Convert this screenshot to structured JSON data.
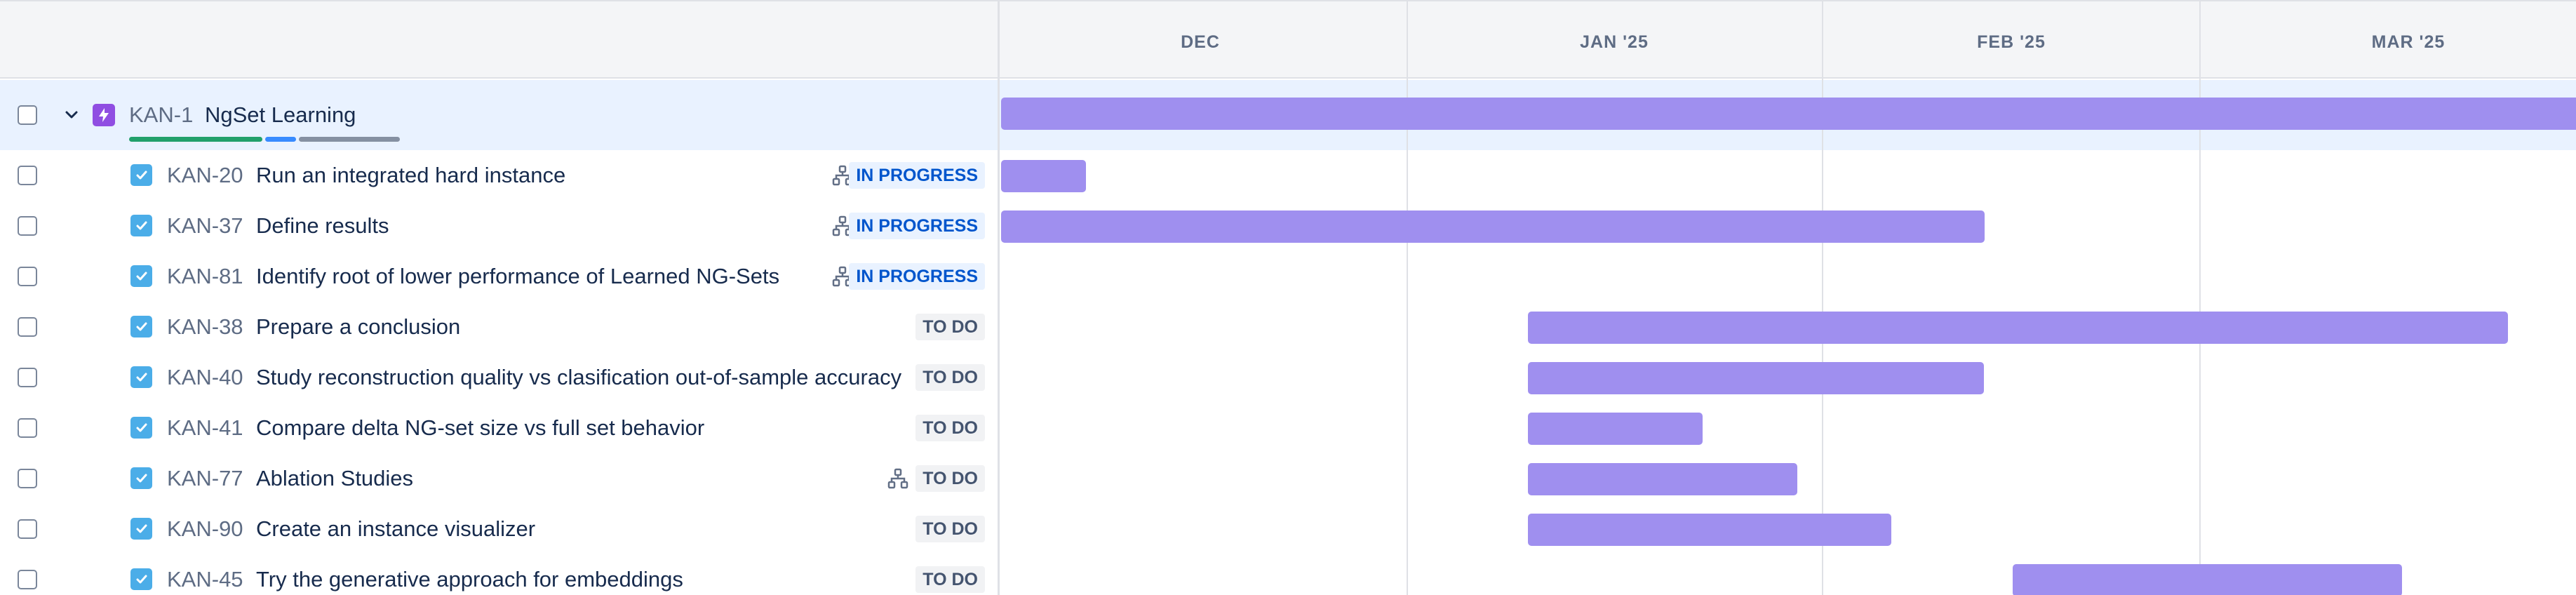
{
  "timeline": {
    "months": [
      "DEC",
      "JAN '25",
      "FEB '25",
      "MAR '25"
    ]
  },
  "epic": {
    "key": "KAN-1",
    "title": "NgSet Learning",
    "progress_colors": [
      "#22a06b",
      "#388bff",
      "#8590a2"
    ]
  },
  "status_labels": {
    "in_progress": "IN PROGRESS",
    "todo": "TO DO"
  },
  "colors": {
    "bar": "#9f8fef",
    "epic_icon": "#904ee2",
    "task_icon": "#4bade8"
  },
  "issues": [
    {
      "key": "KAN-20",
      "title": "Run an integrated hard instance",
      "status": "IN PROGRESS",
      "has_children": true
    },
    {
      "key": "KAN-37",
      "title": "Define results",
      "status": "IN PROGRESS",
      "has_children": true
    },
    {
      "key": "KAN-81",
      "title": "Identify root of lower performance of Learned NG-Sets",
      "status": "IN PROGRESS",
      "has_children": true
    },
    {
      "key": "KAN-38",
      "title": "Prepare a conclusion",
      "status": "TO DO",
      "has_children": false
    },
    {
      "key": "KAN-40",
      "title": "Study reconstruction quality vs clasification out-of-sample accuracy",
      "status": "TO DO",
      "has_children": false
    },
    {
      "key": "KAN-41",
      "title": "Compare delta NG-set size vs full set behavior",
      "status": "TO DO",
      "has_children": false
    },
    {
      "key": "KAN-77",
      "title": "Ablation Studies",
      "status": "TO DO",
      "has_children": true
    },
    {
      "key": "KAN-90",
      "title": "Create an instance visualizer",
      "status": "TO DO",
      "has_children": false
    },
    {
      "key": "KAN-45",
      "title": "Try the generative approach for embeddings",
      "status": "TO DO",
      "has_children": false
    }
  ]
}
